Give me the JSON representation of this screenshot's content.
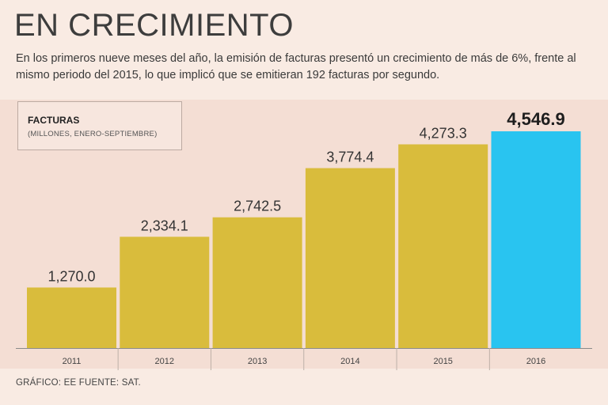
{
  "header": {
    "title": "EN CRECIMIENTO",
    "subtitle": "En  los primeros nueve meses del año, la emisión de facturas presentó un crecimiento de más de 6%, frente al mismo periodo del 2015, lo que implicó que se emitieran 192 facturas por segundo."
  },
  "legend": {
    "title": "FACTURAS",
    "subtitle": "(MILLONES, ENERO-SEPTIEMBRE)"
  },
  "footer": {
    "credit": "GRÁFICO: EE  FUENTE: SAT."
  },
  "colors": {
    "bar": "#d9bc3c",
    "highlight": "#29c4f0",
    "axis": "#8a8a8a"
  },
  "chart_data": {
    "type": "bar",
    "title": "FACTURAS",
    "subtitle": "(MILLONES, ENERO-SEPTIEMBRE)",
    "categories": [
      "2011",
      "2012",
      "2013",
      "2014",
      "2015",
      "2016"
    ],
    "values": [
      1270.0,
      2334.1,
      2742.5,
      3774.4,
      4273.3,
      4546.9
    ],
    "value_labels": [
      "1,270.0",
      "2,334.1",
      "2,742.5",
      "3,774.4",
      "4,273.3",
      "4,546.9"
    ],
    "highlight_index": 5,
    "xlabel": "",
    "ylabel": "",
    "ylim": [
      0,
      5000
    ],
    "grid": false,
    "legend": "top-left"
  }
}
